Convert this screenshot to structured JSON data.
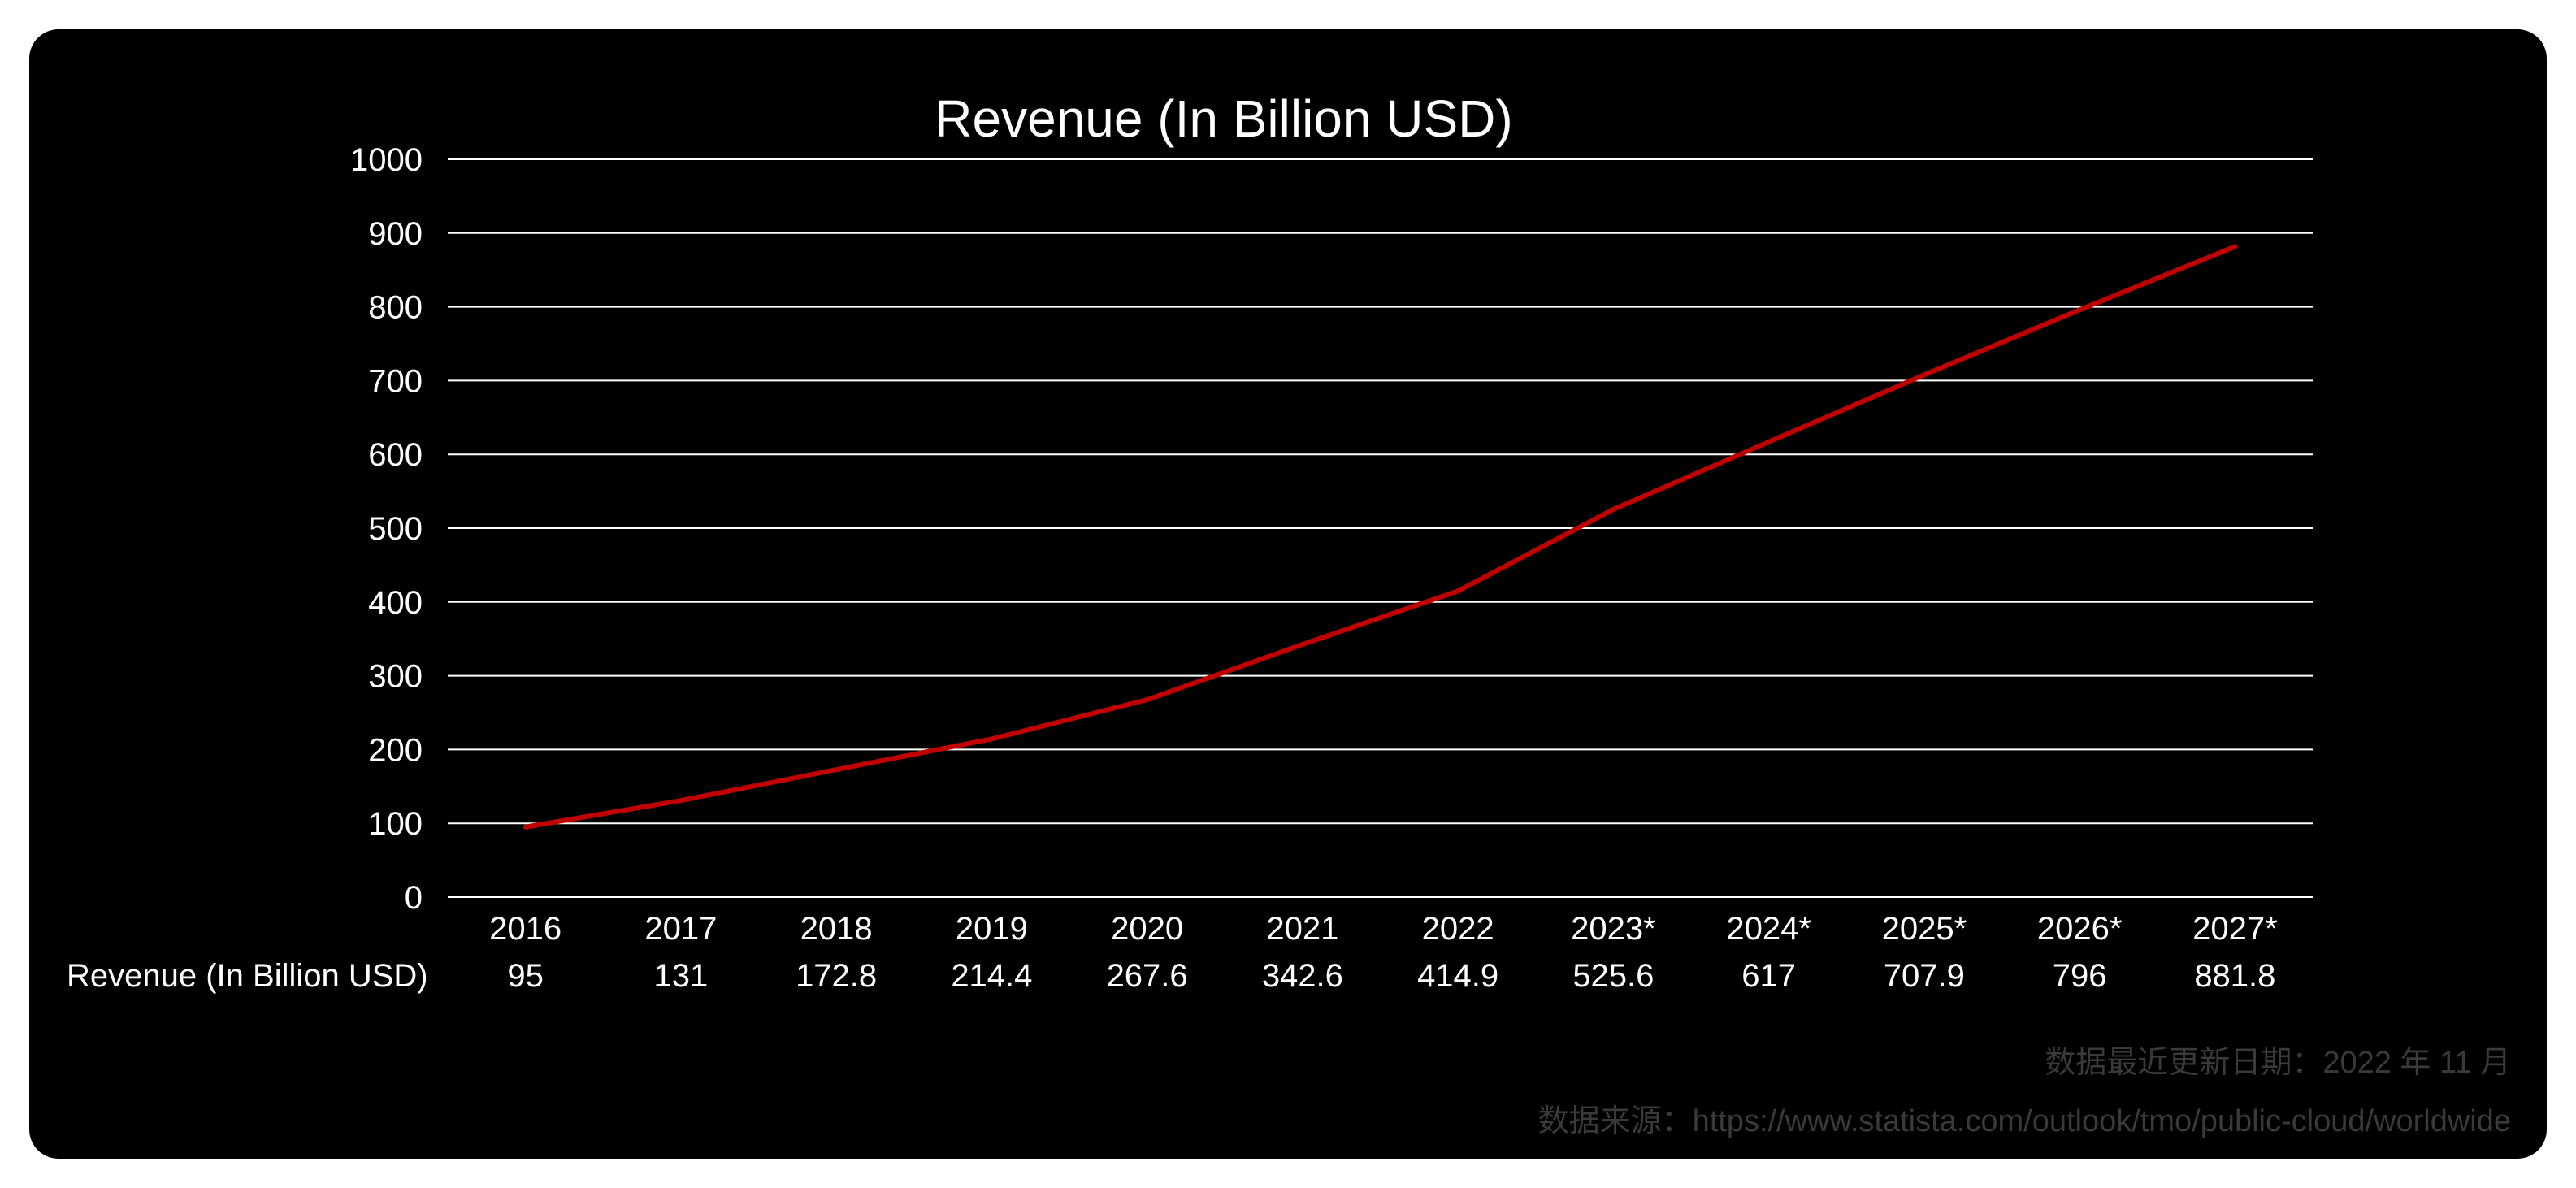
{
  "chart_data": {
    "type": "line",
    "title": "Revenue (In Billion USD)",
    "categories": [
      "2016",
      "2017",
      "2018",
      "2019",
      "2020",
      "2021",
      "2022",
      "2023*",
      "2024*",
      "2025*",
      "2026*",
      "2027*"
    ],
    "series": [
      {
        "name": "Revenue (In Billion USD)",
        "values": [
          95,
          131,
          172.8,
          214.4,
          267.6,
          342.6,
          414.9,
          525.6,
          617,
          707.9,
          796,
          881.8
        ],
        "labels": [
          "95",
          "131",
          "172.8",
          "214.4",
          "267.6",
          "342.6",
          "414.9",
          "525.6",
          "617",
          "707.9",
          "796",
          "881.8"
        ]
      }
    ],
    "ylim": [
      0,
      1000
    ],
    "yticks": [
      "0",
      "100",
      "200",
      "300",
      "400",
      "500",
      "600",
      "700",
      "800",
      "900",
      "1000"
    ],
    "grid": true,
    "data_table": true,
    "colors": {
      "line": "#c00000",
      "grid": "#ffffff",
      "background": "#000000"
    }
  },
  "footer": {
    "updated": "数据最近更新日期：2022 年 11 月",
    "source": "数据来源：https://www.statista.com/outlook/tmo/public-cloud/worldwide"
  }
}
